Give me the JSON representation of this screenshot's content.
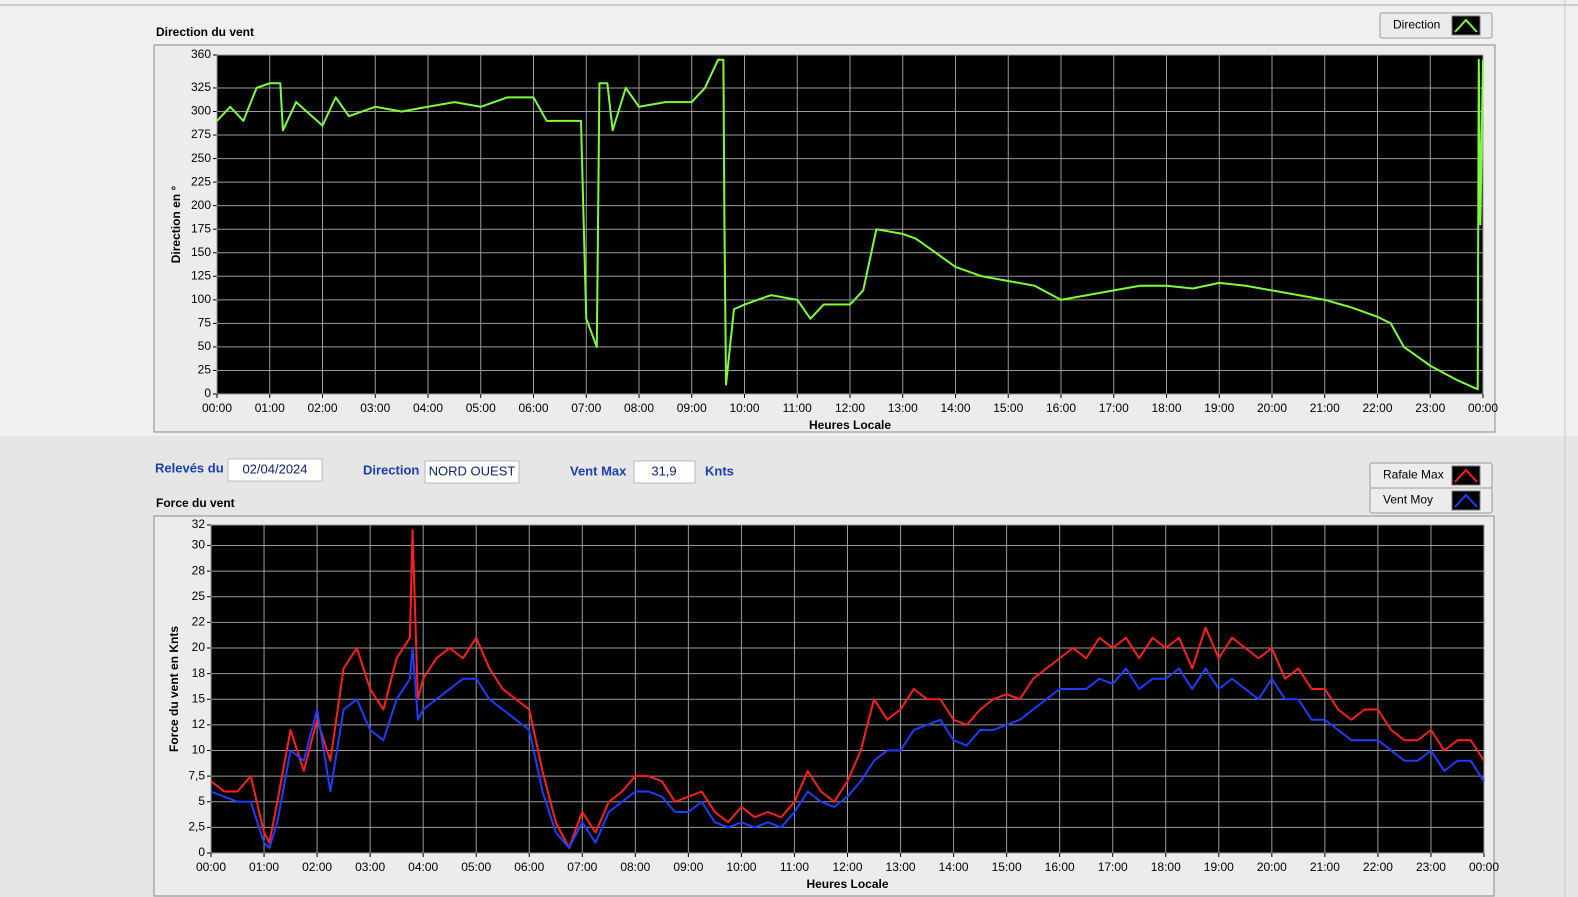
{
  "form": {
    "date_label": "Relevés du",
    "date": "02/04/2024",
    "direction_label": "Direction",
    "direction": "NORD OUEST",
    "vent_max_label": "Vent Max",
    "vent_max": "31,9",
    "unit": "Knts"
  },
  "chart_data": [
    {
      "type": "line",
      "title": "Direction du vent",
      "y_label": "Direction en °",
      "x_label": "Heures Locale",
      "x": [
        0,
        0.25,
        0.5,
        0.75,
        1,
        1.2,
        1.25,
        1.5,
        2,
        2.25,
        2.5,
        3,
        3.5,
        4,
        4.5,
        5,
        5.5,
        6,
        6.25,
        6.9,
        7,
        7.2,
        7.25,
        7.4,
        7.5,
        7.75,
        8,
        8.5,
        9,
        9.25,
        9.5,
        9.6,
        9.62,
        9.65,
        9.8,
        10,
        10.25,
        10.5,
        11,
        11.25,
        11.5,
        12,
        12.25,
        12.5,
        13,
        13.25,
        13.5,
        14,
        14.5,
        15,
        15.5,
        16,
        16.5,
        17,
        17.5,
        18,
        18.5,
        19,
        19.5,
        20,
        20.5,
        21,
        21.5,
        22,
        22.25,
        22.5,
        22.75,
        23,
        23.5,
        23.9,
        23.92,
        23.95,
        24
      ],
      "series": [
        {
          "name": "Direction",
          "color": "#7dfc3a",
          "values": [
            290,
            305,
            290,
            325,
            330,
            330,
            280,
            310,
            285,
            315,
            295,
            305,
            300,
            305,
            310,
            305,
            315,
            315,
            290,
            290,
            80,
            50,
            330,
            330,
            280,
            325,
            305,
            310,
            310,
            325,
            355,
            355,
            180,
            10,
            90,
            95,
            100,
            105,
            100,
            80,
            95,
            95,
            110,
            175,
            170,
            165,
            155,
            135,
            125,
            120,
            115,
            100,
            105,
            110,
            115,
            115,
            112,
            118,
            115,
            110,
            105,
            100,
            92,
            82,
            75,
            50,
            40,
            30,
            15,
            5,
            355,
            180,
            355
          ]
        }
      ],
      "xlim": [
        0,
        24
      ],
      "xticks": [
        {
          "value": 0,
          "label": "00:00"
        },
        {
          "value": 1,
          "label": "01:00"
        },
        {
          "value": 2,
          "label": "02:00"
        },
        {
          "value": 3,
          "label": "03:00"
        },
        {
          "value": 4,
          "label": "04:00"
        },
        {
          "value": 5,
          "label": "05:00"
        },
        {
          "value": 6,
          "label": "06:00"
        },
        {
          "value": 7,
          "label": "07:00"
        },
        {
          "value": 8,
          "label": "08:00"
        },
        {
          "value": 9,
          "label": "09:00"
        },
        {
          "value": 10,
          "label": "10:00"
        },
        {
          "value": 11,
          "label": "11:00"
        },
        {
          "value": 12,
          "label": "12:00"
        },
        {
          "value": 13,
          "label": "13:00"
        },
        {
          "value": 14,
          "label": "14:00"
        },
        {
          "value": 15,
          "label": "15:00"
        },
        {
          "value": 16,
          "label": "16:00"
        },
        {
          "value": 17,
          "label": "17:00"
        },
        {
          "value": 18,
          "label": "18:00"
        },
        {
          "value": 19,
          "label": "19:00"
        },
        {
          "value": 20,
          "label": "20:00"
        },
        {
          "value": 21,
          "label": "21:00"
        },
        {
          "value": 22,
          "label": "22:00"
        },
        {
          "value": 23,
          "label": "23:00"
        },
        {
          "value": 24,
          "label": "00:00"
        }
      ],
      "ylim": [
        0,
        360
      ],
      "yticks": [
        0,
        25,
        50,
        75,
        100,
        125,
        150,
        175,
        200,
        225,
        250,
        275,
        300,
        325,
        360
      ],
      "grid": true
    },
    {
      "type": "line",
      "title": "Force du vent",
      "y_label": "Force du vent en Knts",
      "x_label": "Heures Locale",
      "x": [
        0,
        0.25,
        0.5,
        0.75,
        1,
        1.1,
        1.25,
        1.5,
        1.75,
        2,
        2.25,
        2.5,
        2.75,
        3,
        3.25,
        3.5,
        3.75,
        3.8,
        3.9,
        4,
        4.25,
        4.5,
        4.75,
        5,
        5.25,
        5.5,
        5.75,
        6,
        6.25,
        6.5,
        6.75,
        7,
        7.25,
        7.5,
        7.75,
        8,
        8.25,
        8.5,
        8.75,
        9,
        9.25,
        9.5,
        9.75,
        10,
        10.25,
        10.5,
        10.75,
        11,
        11.25,
        11.5,
        11.75,
        12,
        12.25,
        12.5,
        12.75,
        13,
        13.25,
        13.5,
        13.75,
        14,
        14.25,
        14.5,
        14.75,
        15,
        15.25,
        15.5,
        15.75,
        16,
        16.25,
        16.5,
        16.75,
        17,
        17.25,
        17.5,
        17.75,
        18,
        18.25,
        18.5,
        18.75,
        19,
        19.25,
        19.5,
        19.75,
        20,
        20.25,
        20.5,
        20.75,
        21,
        21.25,
        21.5,
        21.75,
        22,
        22.25,
        22.5,
        22.75,
        23,
        23.25,
        23.5,
        23.75,
        24
      ],
      "series": [
        {
          "name": "Rafale Max",
          "color": "#ff1f1f",
          "values": [
            7,
            6,
            6,
            7.5,
            2,
            1,
            5,
            12,
            8,
            13,
            9,
            18,
            20,
            16,
            14,
            19,
            21,
            31.5,
            15,
            17,
            19,
            20,
            19,
            21,
            18,
            16,
            15,
            14,
            8,
            3,
            0.5,
            4,
            2,
            5,
            6,
            7.5,
            7.5,
            7,
            5,
            5.5,
            6,
            4,
            3,
            4.5,
            3.5,
            4,
            3.5,
            5,
            8,
            6,
            5,
            7,
            10,
            15,
            13,
            14,
            16,
            15,
            15,
            13,
            12.5,
            14,
            15,
            15.5,
            15,
            17,
            18,
            19,
            20,
            19,
            21,
            20,
            21,
            19,
            21,
            20,
            21,
            18,
            22,
            19,
            21,
            20,
            19,
            20,
            17,
            18,
            16,
            16,
            14,
            13,
            14,
            14,
            12,
            11,
            11,
            12,
            10,
            11,
            11,
            9
          ]
        },
        {
          "name": "Vent Moy",
          "color": "#1f3cff",
          "values": [
            6,
            5.5,
            5,
            5,
            1,
            0.5,
            3,
            10,
            9,
            14,
            6,
            14,
            15,
            12,
            11,
            15,
            17,
            20,
            13,
            14,
            15,
            16,
            17,
            17,
            15,
            14,
            13,
            12,
            6,
            2,
            0.5,
            3,
            1,
            4,
            5,
            6,
            6,
            5.5,
            4,
            4,
            5,
            3,
            2.5,
            3,
            2.5,
            3,
            2.5,
            4,
            6,
            5,
            4.5,
            5.5,
            7,
            9,
            10,
            10,
            12,
            12.5,
            13,
            11,
            10.5,
            12,
            12,
            12.5,
            13,
            14,
            15,
            16,
            16,
            16,
            17,
            16.5,
            18,
            16,
            17,
            17,
            18,
            16,
            18,
            16,
            17,
            16,
            15,
            17,
            15,
            15,
            13,
            13,
            12,
            11,
            11,
            11,
            10,
            9,
            9,
            10,
            8,
            9,
            9,
            7
          ]
        }
      ],
      "xlim": [
        0,
        24
      ],
      "xticks": [
        {
          "value": 0,
          "label": "00:00"
        },
        {
          "value": 1,
          "label": "01:00"
        },
        {
          "value": 2,
          "label": "02:00"
        },
        {
          "value": 3,
          "label": "03:00"
        },
        {
          "value": 4,
          "label": "04:00"
        },
        {
          "value": 5,
          "label": "05:00"
        },
        {
          "value": 6,
          "label": "06:00"
        },
        {
          "value": 7,
          "label": "07:00"
        },
        {
          "value": 8,
          "label": "08:00"
        },
        {
          "value": 9,
          "label": "09:00"
        },
        {
          "value": 10,
          "label": "10:00"
        },
        {
          "value": 11,
          "label": "11:00"
        },
        {
          "value": 12,
          "label": "12:00"
        },
        {
          "value": 13,
          "label": "13:00"
        },
        {
          "value": 14,
          "label": "14:00"
        },
        {
          "value": 15,
          "label": "15:00"
        },
        {
          "value": 16,
          "label": "16:00"
        },
        {
          "value": 17,
          "label": "17:00"
        },
        {
          "value": 18,
          "label": "18:00"
        },
        {
          "value": 19,
          "label": "19:00"
        },
        {
          "value": 20,
          "label": "20:00"
        },
        {
          "value": 21,
          "label": "21:00"
        },
        {
          "value": 22,
          "label": "22:00"
        },
        {
          "value": 23,
          "label": "23:00"
        },
        {
          "value": 24,
          "label": "00:00"
        }
      ],
      "ylim": [
        0,
        32
      ],
      "yticks": [
        0,
        {
          "value": 2.5,
          "label": "2,5"
        },
        5,
        {
          "value": 7.5,
          "label": "7,5"
        },
        10,
        {
          "value": 12.5,
          "label": "12"
        },
        15,
        {
          "value": 17.5,
          "label": "18"
        },
        20,
        {
          "value": 22.5,
          "label": "22"
        },
        25,
        {
          "value": 27.5,
          "label": "28"
        },
        30,
        32
      ],
      "grid": true
    }
  ]
}
